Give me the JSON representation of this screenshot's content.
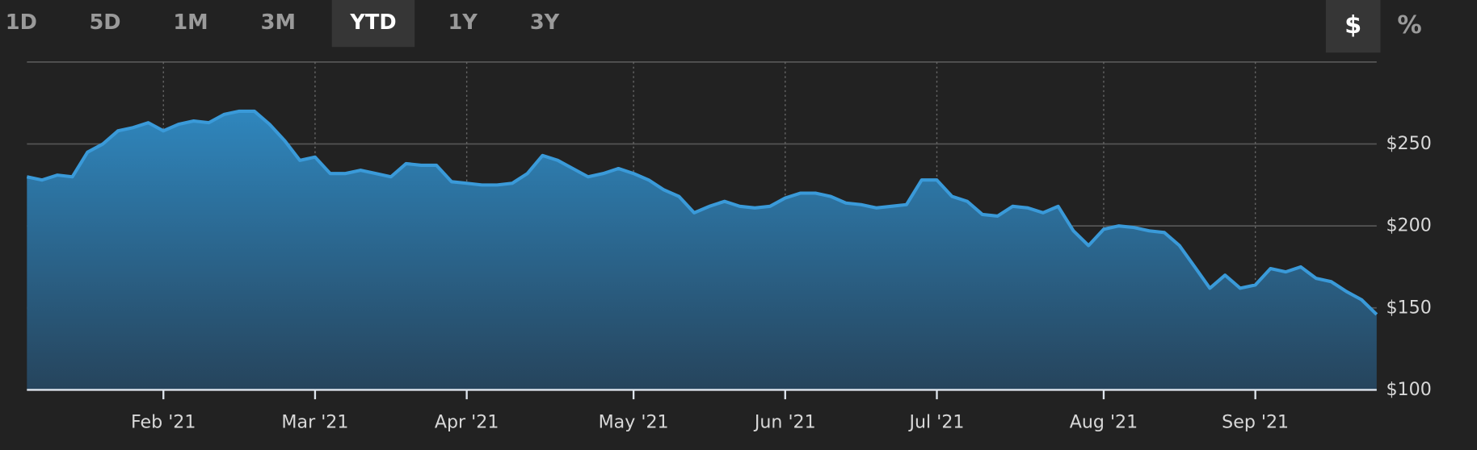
{
  "controls": {
    "ranges": [
      "1D",
      "5D",
      "1M",
      "3M",
      "YTD",
      "1Y",
      "3Y"
    ],
    "active_range": "YTD",
    "units": [
      "$",
      "%"
    ],
    "active_unit": "$"
  },
  "chart_data": {
    "type": "area",
    "categories": [
      null,
      null,
      null,
      null,
      null,
      null,
      null,
      null,
      null,
      "Feb '21",
      null,
      null,
      null,
      null,
      null,
      null,
      null,
      null,
      null,
      "Mar '21",
      null,
      null,
      null,
      null,
      null,
      null,
      null,
      null,
      null,
      "Apr '21",
      null,
      null,
      null,
      null,
      null,
      null,
      null,
      null,
      null,
      null,
      "May '21",
      null,
      null,
      null,
      null,
      null,
      null,
      null,
      null,
      null,
      "Jun '21",
      null,
      null,
      null,
      null,
      null,
      null,
      null,
      null,
      null,
      "Jul '21",
      null,
      null,
      null,
      null,
      null,
      null,
      null,
      null,
      null,
      null,
      "Aug '21",
      null,
      null,
      null,
      null,
      null,
      null,
      null,
      null,
      null,
      "Sep '21",
      null,
      null,
      null,
      null,
      null,
      null,
      null,
      null
    ],
    "values": [
      230,
      228,
      231,
      230,
      245,
      250,
      258,
      260,
      263,
      258,
      262,
      264,
      263,
      268,
      270,
      270,
      262,
      252,
      240,
      242,
      232,
      232,
      234,
      232,
      230,
      238,
      237,
      237,
      227,
      226,
      225,
      225,
      226,
      232,
      243,
      240,
      235,
      230,
      232,
      235,
      232,
      228,
      222,
      218,
      208,
      212,
      215,
      212,
      211,
      212,
      217,
      220,
      220,
      218,
      214,
      213,
      211,
      212,
      213,
      228,
      228,
      218,
      215,
      207,
      206,
      212,
      211,
      208,
      212,
      197,
      188,
      198,
      200,
      199,
      197,
      196,
      188,
      175,
      162,
      170,
      162,
      164,
      174,
      172,
      175,
      168,
      166,
      160,
      155,
      146
    ],
    "color": "#3a9ad9",
    "ylim": [
      100,
      300
    ],
    "yticks": [
      {
        "value": 100,
        "label": "$100"
      },
      {
        "value": 150,
        "label": "$150"
      },
      {
        "value": 200,
        "label": "$200"
      },
      {
        "value": 250,
        "label": "$250"
      }
    ],
    "grid": true
  }
}
